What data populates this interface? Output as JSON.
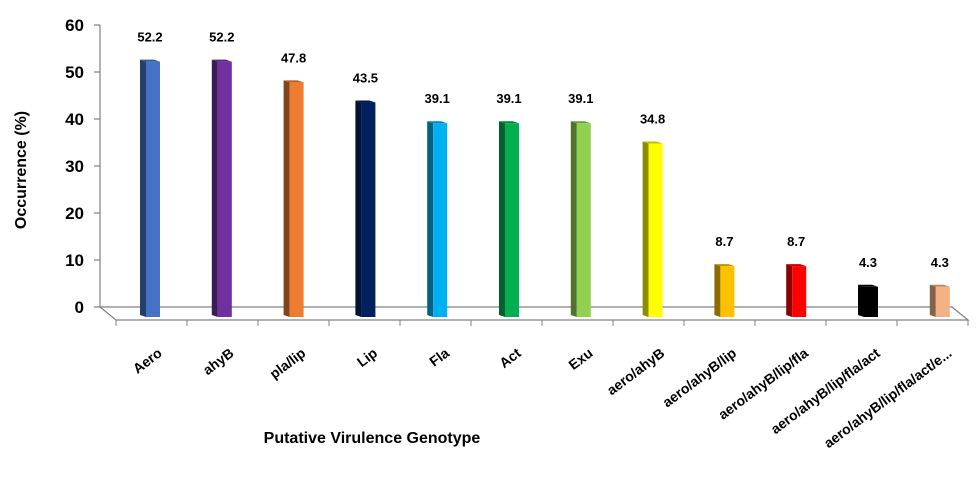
{
  "chart_data": {
    "type": "bar",
    "title": "",
    "xlabel": "Putative Virulence Genotype",
    "ylabel": "Occurrence (%)",
    "ylim": [
      0,
      60
    ],
    "yticks": [
      0,
      10,
      20,
      30,
      40,
      50,
      60
    ],
    "grid": false,
    "legend": "none",
    "categories": [
      "Aero",
      "ahyB",
      "pla/lip",
      "Lip",
      "Fla",
      "Act",
      "Exu",
      "aero/ahyB",
      "aero/ahyB/lip",
      "aero/ahyB/lip/fla",
      "aero/ahyB/lip/fla/act",
      "aero/ahyB/lip/fla/act/e..."
    ],
    "values": [
      52.2,
      52.2,
      47.8,
      43.5,
      39.1,
      39.1,
      39.1,
      34.8,
      8.7,
      8.7,
      4.3,
      4.3
    ],
    "data_labels": [
      "52.2",
      "52.2",
      "47.8",
      "43.5",
      "39.1",
      "39.1",
      "39.1",
      "34.8",
      "8.7",
      "8.7",
      "4.3",
      "4.3"
    ],
    "colors": [
      "#4472C4",
      "#7030A0",
      "#ED7D31",
      "#002060",
      "#00B0F0",
      "#00B050",
      "#92D050",
      "#FFFF00",
      "#FFC000",
      "#FF0000",
      "#000000",
      "#F4B183"
    ]
  }
}
